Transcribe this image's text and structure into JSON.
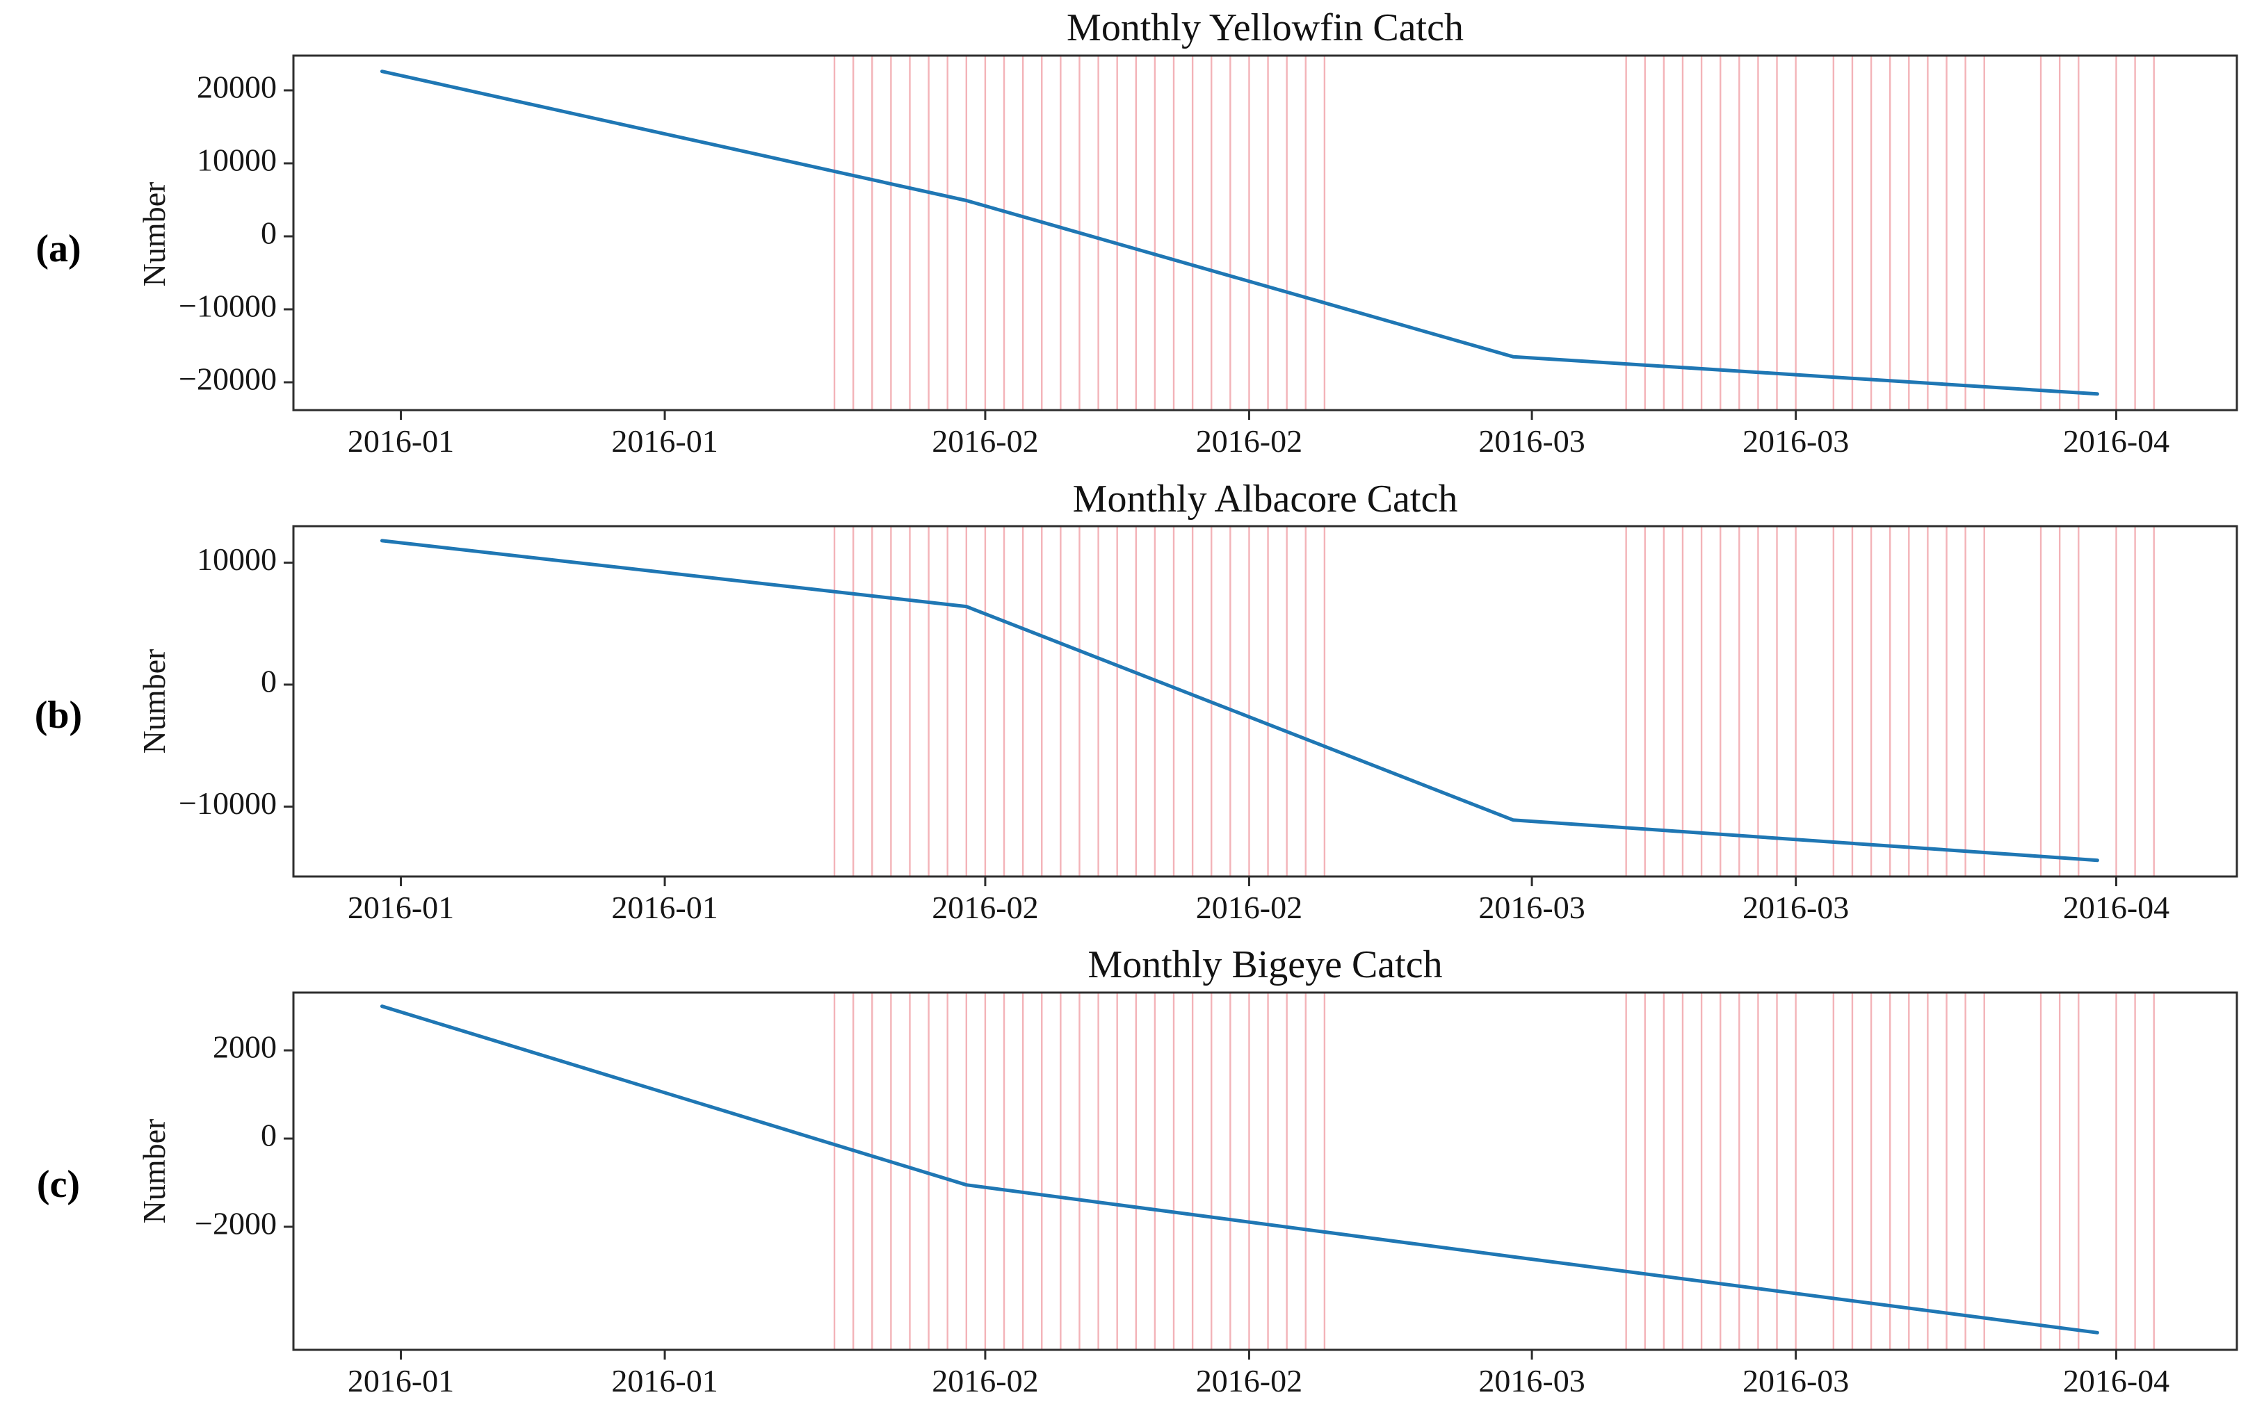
{
  "figure": {
    "y_axis_label": "Number",
    "x_tick_labels": [
      "2016-01",
      "2016-01",
      "2016-02",
      "2016-02",
      "2016-03",
      "2016-03",
      "2016-04"
    ],
    "x_tick_days_from_2016_01_01": [
      0,
      14,
      31,
      45,
      60,
      74,
      91
    ],
    "xlim_days_from_2016_01_01": [
      -5.7,
      97.4
    ],
    "grid_line_days_from_2016_01_01": [
      23,
      24,
      25,
      26,
      27,
      28,
      29,
      30,
      31,
      32,
      33,
      34,
      35,
      36,
      37,
      38,
      39,
      40,
      41,
      42,
      43,
      44,
      45,
      46,
      47,
      48,
      49,
      65,
      66,
      67,
      68,
      69,
      70,
      71,
      72,
      73,
      74,
      76,
      77,
      78,
      79,
      80,
      81,
      82,
      83,
      84,
      87,
      88,
      89,
      91,
      92,
      93
    ],
    "colors": {
      "line": "#1f77b4",
      "daily_grid": "#f3b3b8",
      "axis": "#2e2e2e",
      "tick_text": "#161616"
    }
  },
  "chart_data": [
    {
      "type": "line",
      "panel_label": "(a)",
      "title": "Monthly Yellowfin Catch",
      "xlabel": "",
      "ylabel": "Number",
      "x_dates": [
        "2015-12-31",
        "2016-01-31",
        "2016-02-29",
        "2016-03-31"
      ],
      "x_days": [
        -1,
        30,
        59,
        90
      ],
      "values": [
        22600,
        4900,
        -16500,
        -21600
      ],
      "yticks": [
        20000,
        10000,
        0,
        -10000,
        -20000
      ],
      "ylim": [
        -23810,
        24760
      ],
      "grid": "vertical daily pink lines in two date bands",
      "legend": "none"
    },
    {
      "type": "line",
      "panel_label": "(b)",
      "title": "Monthly Albacore Catch",
      "xlabel": "",
      "ylabel": "Number",
      "x_dates": [
        "2015-12-31",
        "2016-01-31",
        "2016-02-29",
        "2016-03-31"
      ],
      "x_days": [
        -1,
        30,
        59,
        90
      ],
      "values": [
        11800,
        6400,
        -11100,
        -14400
      ],
      "yticks": [
        10000,
        0,
        -10000
      ],
      "ylim": [
        -15730,
        12990
      ],
      "grid": "vertical daily pink lines in two date bands",
      "legend": "none"
    },
    {
      "type": "line",
      "panel_label": "(c)",
      "title": "Monthly Bigeye Catch",
      "xlabel": "",
      "ylabel": "Number",
      "x_dates": [
        "2015-12-31",
        "2016-01-31",
        "2016-02-29",
        "2016-03-31"
      ],
      "x_days": [
        -1,
        30,
        59,
        90
      ],
      "values": [
        3000,
        -1050,
        -2680,
        -4400
      ],
      "yticks": [
        2000,
        0,
        -2000
      ],
      "ylim": [
        -4790,
        3310
      ],
      "grid": "vertical daily pink lines in two date bands",
      "legend": "none"
    }
  ]
}
